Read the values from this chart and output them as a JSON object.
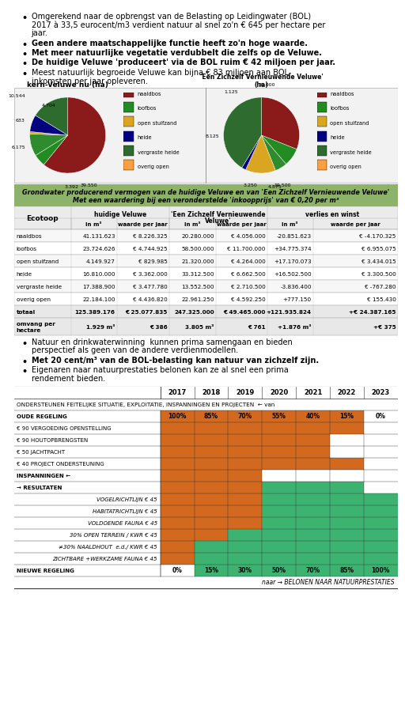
{
  "bullet_points_top": [
    "Omgerekend naar de opbrengst van de Belasting op Leidingwater (BOL)\n2017 à 33,5 eurocent/m3 verdient natuur al snel zo'n € 645 per hectare per\njaar.",
    "Geen andere maatschappelijke functie heeft zo'n hoge waarde.",
    "Met meer natuurlijke vegetatie verdubbelt die zelfs op de Veluwe.",
    "De huidige Veluwe 'produceert' via de BOL ruim € 42 miljoen per jaar.",
    "Meest natuurlijk begroeide Veluwe kan bijna € 83 miljoen aan BOL-\ninkomsten per jaar opleveren."
  ],
  "pie1_title": "kern-Veluwe nu (ha)",
  "pie1_values": [
    39550,
    3392,
    6175,
    633,
    4704,
    10544
  ],
  "pie1_labels": [
    "39.550",
    "3.392",
    "6.175",
    "633",
    "4.704",
    "10.544"
  ],
  "pie1_colors": [
    "#8B1A1A",
    "#228B22",
    "#2E8B2E",
    "#DAA520",
    "#000080",
    "#2E6B2E"
  ],
  "pie2_title": "'Een Zichzelf Vernieuwende Veluwe'\n(ha)",
  "pie2_values": [
    19500,
    4875,
    3250,
    8125,
    1125,
    26000
  ],
  "pie2_labels": [
    "19.500",
    "4.875",
    "3.250",
    "8.125",
    "1.125",
    "26.000"
  ],
  "pie2_colors": [
    "#8B1A1A",
    "#228B22",
    "#2E8B2E",
    "#DAA520",
    "#000080",
    "#2E6B2E"
  ],
  "pie_legend": [
    "naaldbos",
    "loofbos",
    "open stuifzand",
    "heide",
    "vergraste heide",
    "overig open"
  ],
  "pie_legend_colors": [
    "#8B1A1A",
    "#228B22",
    "#DAA520",
    "#000080",
    "#2E6B2E",
    "#FFA040"
  ],
  "table_header_bg": "#8DB36B",
  "table_rows": [
    [
      "naaldbos",
      "41.131.623",
      "€ 8.226.325",
      "20.280.000",
      "€ 4.056.000",
      "-20.851.623",
      "€ -4.170.325"
    ],
    [
      "loofbos",
      "23.724.626",
      "€ 4.744.925",
      "58.500.000",
      "€ 11.700.000",
      "+34.775.374",
      "€ 6.955.075"
    ],
    [
      "open stuifzand",
      "4.149.927",
      "€ 829.985",
      "21.320.000",
      "€ 4.264.000",
      "+17.170.073",
      "€ 3.434.015"
    ],
    [
      "heide",
      "16.810.000",
      "€ 3.362.000",
      "33.312.500",
      "€ 6.662.500",
      "+16.502.500",
      "€ 3.300.500"
    ],
    [
      "vergraste heide",
      "17.388.900",
      "€ 3.477.780",
      "13.552.500",
      "€ 2.710.500",
      "-3.836.400",
      "€ -767.280"
    ],
    [
      "overig open",
      "22.184.100",
      "€ 4.436.820",
      "22.961.250",
      "€ 4.592.250",
      "+777.150",
      "€ 155.430"
    ],
    [
      "totaal",
      "125.389.176",
      "€ 25.077.835",
      "247.325.000",
      "€ 49.465.000",
      "+121.935.824",
      "+€ 24.387.165"
    ],
    [
      "omvang per\nhectare",
      "1.929 m³",
      "€ 386",
      "3.805 m³",
      "€ 761",
      "+1.876 m³",
      "+€ 375"
    ]
  ],
  "bullet_points_bottom": [
    "Natuur en drinkwaterwinning  kunnen prima samengaan en bieden\nperspectief als geen van de andere verdienmodellen.",
    "Met 20 cent/m³ van de BOL-belasting kan natuur van zichzelf zijn.",
    "Eigenaren naar natuurprestaties belonen kan ze al snel een prima\nrendement bieden."
  ],
  "bottom_table_years": [
    "2017",
    "2018",
    "2019",
    "2020",
    "2021",
    "2022",
    "2023"
  ],
  "bottom_table_rows": [
    {
      "label": "ONDERSTEUNEN FEITELIJKE SITUATIE, EXPLOITATIE, INSPANNINGEN EN PROJECTEN  ← van",
      "span": true
    },
    {
      "label": "OUDE REGELING",
      "cells": [
        "100%",
        "85%",
        "70%",
        "55%",
        "40%",
        "15%",
        "0%"
      ],
      "orange": [
        0,
        1,
        2,
        3,
        4,
        5
      ],
      "bold": true
    },
    {
      "label": "€ 90 VERGOEDING OPENSTELLING",
      "cells": [
        "",
        "",
        "",
        "",
        "",
        "",
        ""
      ],
      "orange": [
        0,
        1,
        2,
        3,
        4,
        5
      ]
    },
    {
      "label": "€ 90 HOUTOPBRENGSTEN",
      "cells": [
        "",
        "",
        "",
        "",
        "",
        "",
        ""
      ],
      "orange": [
        0,
        1,
        2,
        3,
        4
      ]
    },
    {
      "label": "€ 50 JACHTPACHT",
      "cells": [
        "",
        "",
        "",
        "",
        "",
        "",
        ""
      ],
      "orange": [
        0,
        1,
        2,
        3,
        4
      ]
    },
    {
      "label": "€ 40 PROJECT ONDERSTEUNING",
      "cells": [
        "",
        "",
        "",
        "",
        "",
        "",
        ""
      ],
      "orange": [
        0,
        1,
        2,
        3,
        4,
        5
      ]
    },
    {
      "label": "INSPANNINGEN ←",
      "cells": [
        "",
        "",
        "",
        "",
        "",
        "",
        ""
      ],
      "orange": [
        0,
        1,
        2
      ],
      "bold": true
    },
    {
      "label": "→ RESULTATEN",
      "cells": [
        "",
        "",
        "",
        "",
        "",
        "",
        ""
      ],
      "orange": [
        0,
        1,
        2
      ],
      "green": [
        3,
        4,
        5
      ],
      "bold": true
    },
    {
      "label": "VOGELRICHTLIJN € 45",
      "cells": [
        "",
        "",
        "",
        "",
        "",
        "",
        ""
      ],
      "orange": [
        0,
        1,
        2
      ],
      "green": [
        3,
        4,
        5,
        6
      ],
      "italic": true,
      "right_label": true
    },
    {
      "label": "HABITATRICHTLIJN € 45",
      "cells": [
        "",
        "",
        "",
        "",
        "",
        "",
        ""
      ],
      "orange": [
        0,
        1,
        2
      ],
      "green": [
        3,
        4,
        5,
        6
      ],
      "italic": true,
      "right_label": true
    },
    {
      "label": "VOLDOENDE FAUNA € 45",
      "cells": [
        "",
        "",
        "",
        "",
        "",
        "",
        ""
      ],
      "orange": [
        0,
        1,
        2
      ],
      "green": [
        3,
        4,
        5,
        6
      ],
      "italic": true,
      "right_label": true
    },
    {
      "label": "30% OPEN TERREIN / KWR € 45",
      "cells": [
        "",
        "",
        "",
        "",
        "",
        "",
        ""
      ],
      "orange": [
        0,
        1
      ],
      "green": [
        2,
        3,
        4,
        5,
        6
      ],
      "italic": true,
      "right_label": true
    },
    {
      "label": "≠30% NAALDHOUT  e.d./ KWR € 45",
      "cells": [
        "",
        "",
        "",
        "",
        "",
        "",
        ""
      ],
      "orange": [
        0
      ],
      "green": [
        1,
        2,
        3,
        4,
        5,
        6
      ],
      "italic": true,
      "right_label": true
    },
    {
      "label": "ZICHTBARE +WERKZAME FAUNA € 45",
      "cells": [
        "",
        "",
        "",
        "",
        "",
        "",
        ""
      ],
      "orange": [
        0
      ],
      "green": [
        1,
        2,
        3,
        4,
        5,
        6
      ],
      "italic": true,
      "right_label": true
    },
    {
      "label": "NIEUWE REGELING",
      "cells": [
        "0%",
        "15%",
        "30%",
        "50%",
        "70%",
        "85%",
        "100%"
      ],
      "green": [
        1,
        2,
        3,
        4,
        5,
        6
      ],
      "bold": true
    },
    {
      "label": "naar → BELONEN NAAR NATUURPRESTATIES",
      "footer": true
    }
  ],
  "orange_color": "#D2691E",
  "green_color": "#3CB371",
  "bg_color": "white"
}
